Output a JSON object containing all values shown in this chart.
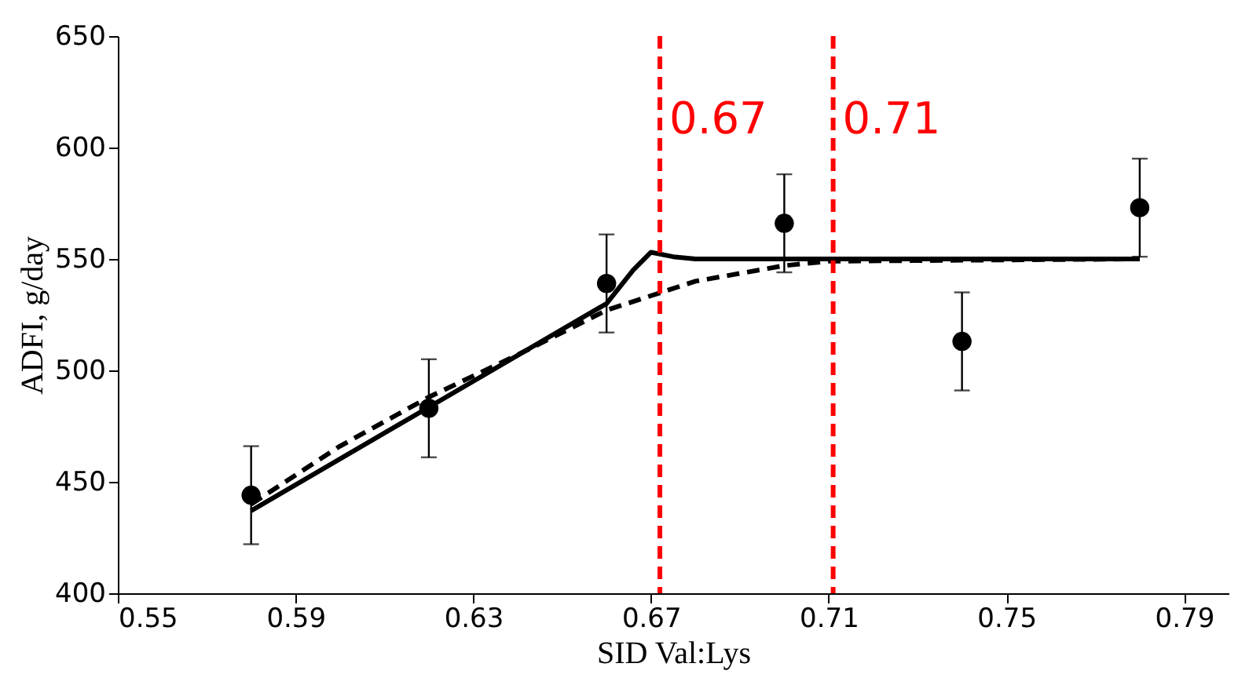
{
  "chart_data": {
    "type": "scatter",
    "xlabel": "SID Val:Lys",
    "ylabel": "ADFI,  g/day",
    "x": [
      0.58,
      0.62,
      0.66,
      0.7,
      0.74,
      0.78
    ],
    "series": [
      {
        "color": "#000000",
        "marker": "circle",
        "values": [
          444,
          483,
          539,
          566,
          513,
          573
        ],
        "errors": [
          22,
          22,
          22,
          22,
          22,
          22
        ]
      },
      {
        "type": "line",
        "color": "#000000",
        "line_style": "solid",
        "x": [
          0.58,
          0.66,
          0.666,
          0.67,
          0.675,
          0.68,
          0.78
        ],
        "values": [
          437,
          530,
          545,
          553,
          551,
          550,
          550
        ]
      },
      {
        "type": "line",
        "color": "#000000",
        "line_style": "dashed",
        "x": [
          0.58,
          0.6,
          0.62,
          0.64,
          0.66,
          0.68,
          0.7,
          0.71,
          0.78
        ],
        "values": [
          440,
          466,
          488,
          507,
          527,
          540,
          547,
          549,
          550
        ]
      }
    ],
    "xlim": [
      0.55,
      0.8
    ],
    "xticks": [
      0.55,
      0.59,
      0.63,
      0.67,
      0.71,
      0.75,
      0.79
    ],
    "ylim": [
      400,
      650
    ],
    "yticks": [
      400,
      450,
      500,
      550,
      600,
      650
    ],
    "ref_lines": [
      {
        "axis": "x",
        "value": 0.672,
        "label": "0.67",
        "color": "#ff0000",
        "line_style": "dashed"
      },
      {
        "axis": "x",
        "value": 0.711,
        "label": "0.71",
        "color": "#ff0000",
        "line_style": "dashed"
      }
    ],
    "grid": false
  }
}
